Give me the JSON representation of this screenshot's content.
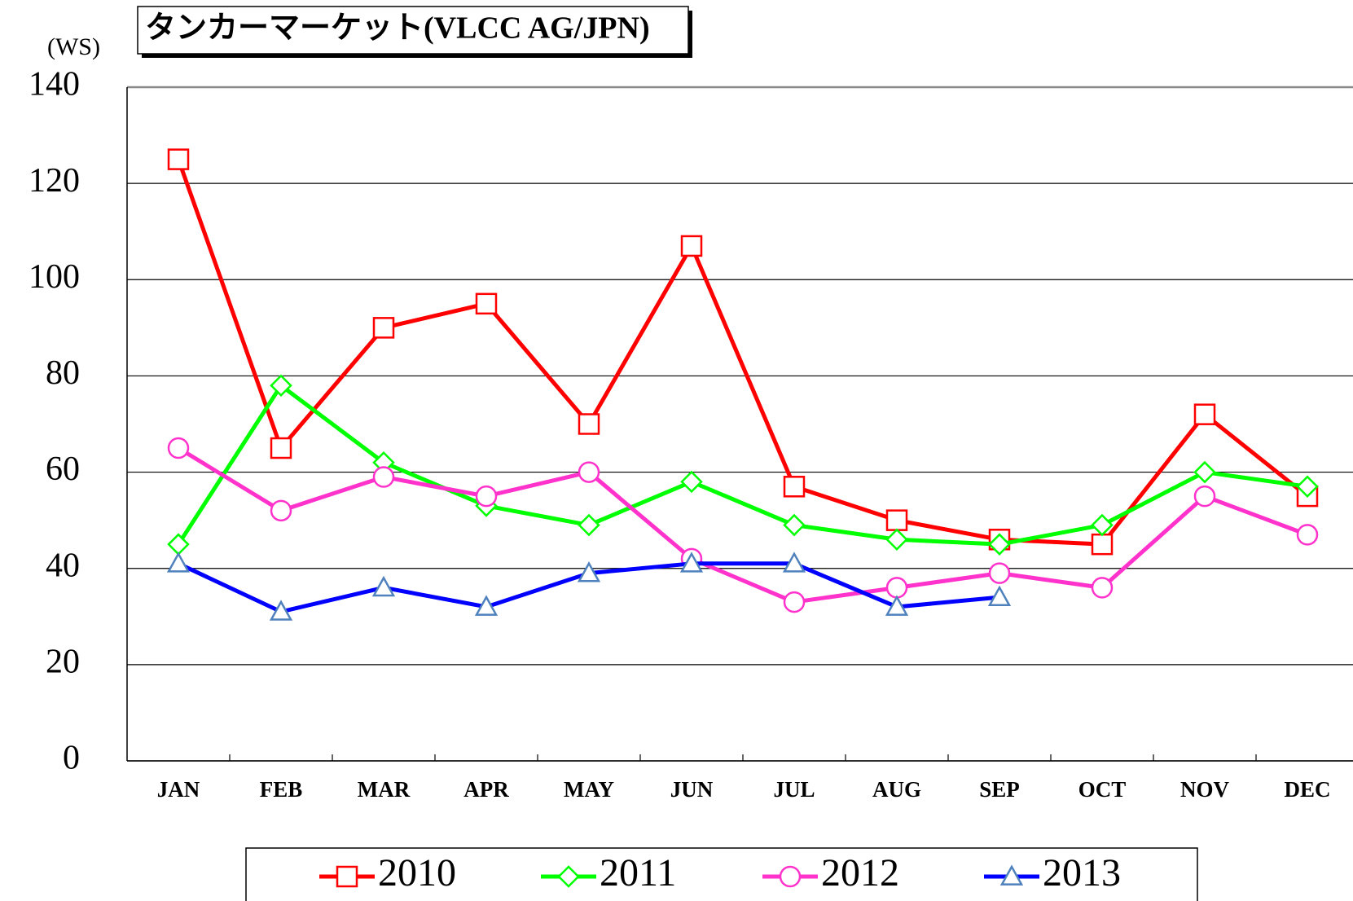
{
  "chart_data": {
    "type": "line",
    "title": "タンカーマーケット(VLCC AG/JPN)",
    "y_label": "(WS)",
    "categories": [
      "JAN",
      "FEB",
      "MAR",
      "APR",
      "MAY",
      "JUN",
      "JUL",
      "AUG",
      "SEP",
      "OCT",
      "NOV",
      "DEC"
    ],
    "series": [
      {
        "name": "2010",
        "color": "#ff0000",
        "marker": "square",
        "values": [
          125,
          65,
          90,
          95,
          70,
          107,
          57,
          50,
          46,
          45,
          72,
          55
        ]
      },
      {
        "name": "2011",
        "color": "#00ff00",
        "marker": "diamond",
        "values": [
          45,
          78,
          62,
          53,
          49,
          58,
          49,
          46,
          45,
          49,
          60,
          57
        ]
      },
      {
        "name": "2012",
        "color": "#ff33cc",
        "marker": "circle",
        "values": [
          65,
          52,
          59,
          55,
          60,
          42,
          33,
          36,
          39,
          36,
          55,
          47
        ]
      },
      {
        "name": "2013",
        "color": "#0000ff",
        "marker": "triangle",
        "values": [
          41,
          31,
          36,
          32,
          39,
          41,
          41,
          32,
          34,
          null,
          null,
          null
        ]
      }
    ],
    "ylim": [
      0,
      140
    ],
    "yticks": [
      0,
      20,
      40,
      60,
      80,
      100,
      120,
      140
    ],
    "grid": true
  }
}
